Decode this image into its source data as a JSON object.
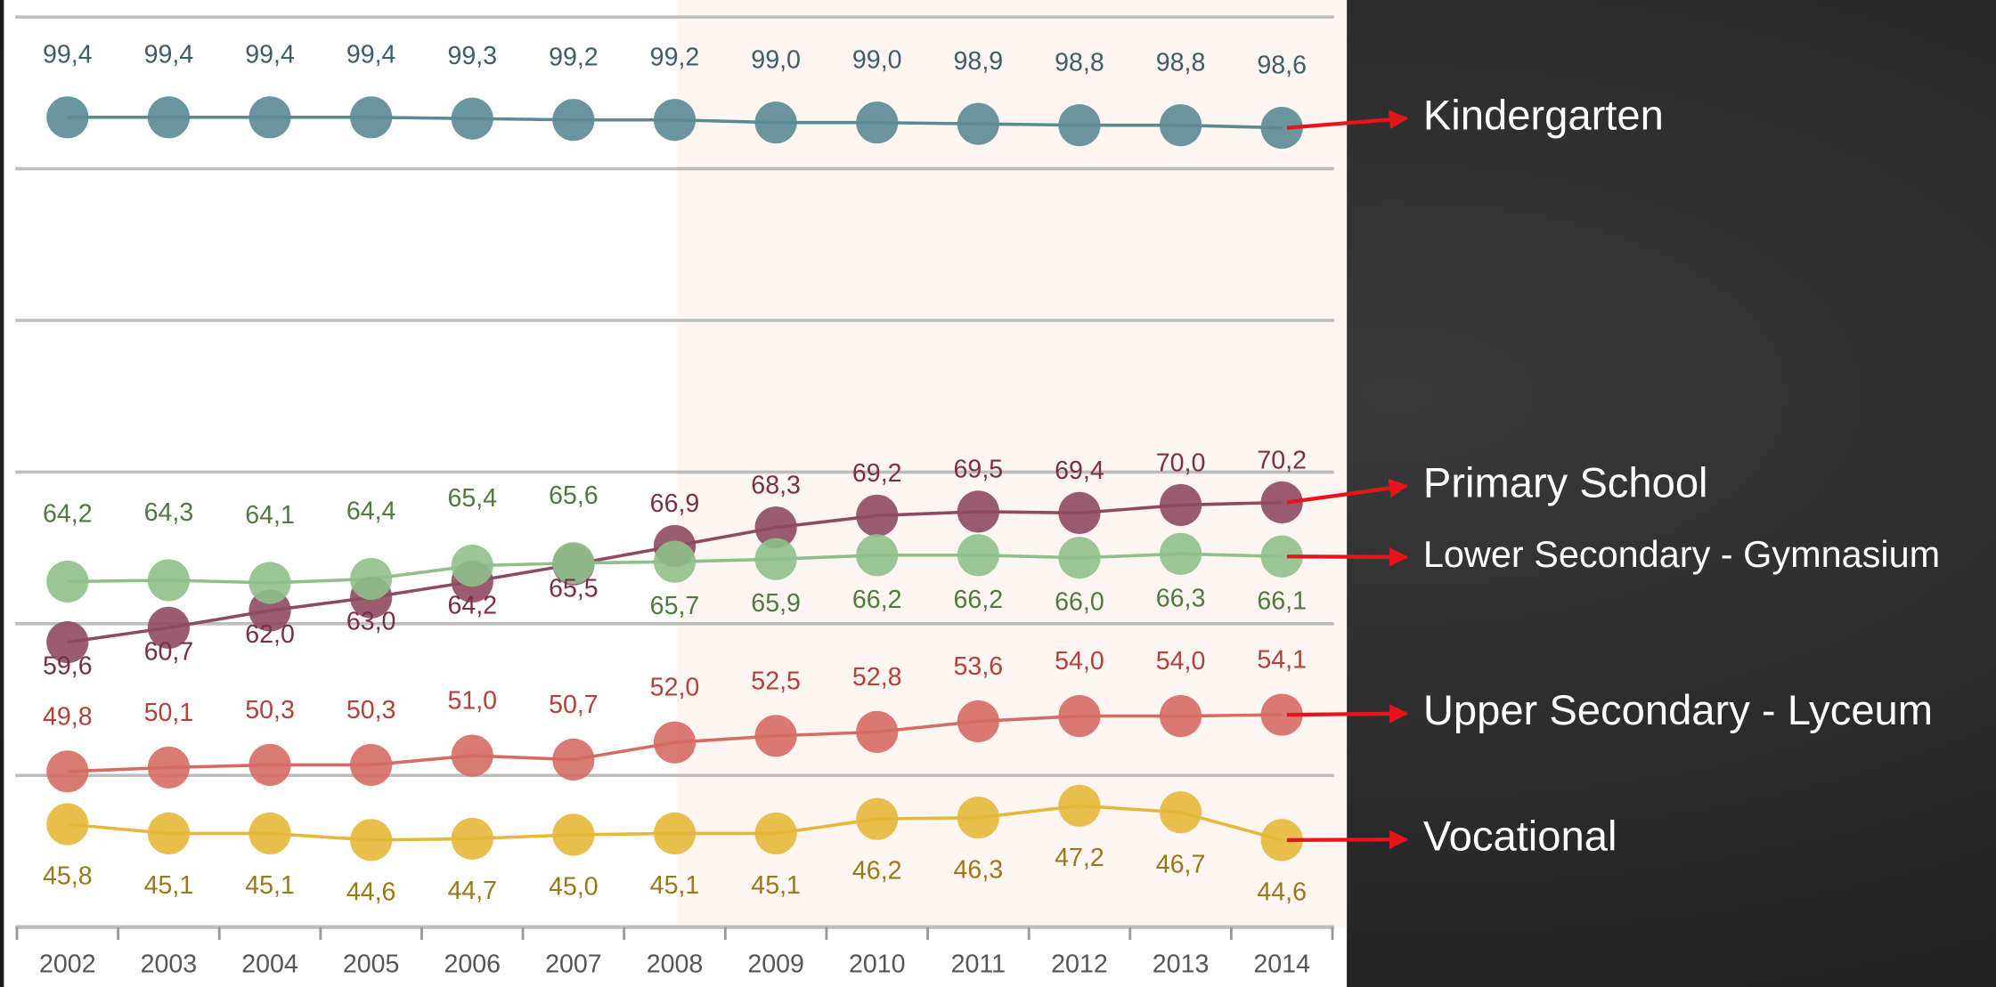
{
  "chart_data": {
    "type": "line",
    "categories": [
      "2002",
      "2003",
      "2004",
      "2005",
      "2006",
      "2007",
      "2008",
      "2009",
      "2010",
      "2011",
      "2012",
      "2013",
      "2014"
    ],
    "ylim": [
      38,
      107
    ],
    "yticks": [
      38,
      49.5,
      61,
      72.5,
      84,
      95.5,
      107
    ],
    "grid": true,
    "series": [
      {
        "name": "Kindergarten",
        "color": "#5b8a94",
        "values": [
          99.4,
          99.4,
          99.4,
          99.4,
          99.3,
          99.2,
          99.2,
          99.0,
          99.0,
          98.9,
          98.8,
          98.8,
          98.6
        ],
        "value_labels": [
          "99,4",
          "99,4",
          "99,4",
          "99,4",
          "99,3",
          "99,2",
          "99,2",
          "99,0",
          "99,0",
          "98,9",
          "98,8",
          "98,8",
          "98,6"
        ]
      },
      {
        "name": "Primary School",
        "color": "#8e4a61",
        "values": [
          59.6,
          60.7,
          62.0,
          63.0,
          64.2,
          65.5,
          66.9,
          68.3,
          69.2,
          69.5,
          69.4,
          70.0,
          70.2
        ],
        "value_labels": [
          "59,6",
          "60,7",
          "62,0",
          "63,0",
          "64,2",
          "65,5",
          "66,9",
          "68,3",
          "69,2",
          "69,5",
          "69,4",
          "70,0",
          "70,2"
        ]
      },
      {
        "name": "Lower Secondary - Gymnasium",
        "color": "#8fc08a",
        "values": [
          64.2,
          64.3,
          64.1,
          64.4,
          65.4,
          65.6,
          65.7,
          65.9,
          66.2,
          66.2,
          66.0,
          66.3,
          66.1
        ],
        "value_labels": [
          "64,2",
          "64,3",
          "64,1",
          "64,4",
          "65,4",
          "65,6",
          "65,7",
          "65,9",
          "66,2",
          "66,2",
          "66,0",
          "66,3",
          "66,1"
        ]
      },
      {
        "name": "Upper Secondary - Lyceum",
        "color": "#d56c64",
        "values": [
          49.8,
          50.1,
          50.3,
          50.3,
          51.0,
          50.7,
          52.0,
          52.5,
          52.8,
          53.6,
          54.0,
          54.0,
          54.1
        ],
        "value_labels": [
          "49,8",
          "50,1",
          "50,3",
          "50,3",
          "51,0",
          "50,7",
          "52,0",
          "52,5",
          "52,8",
          "53,6",
          "54,0",
          "54,0",
          "54,1"
        ]
      },
      {
        "name": "Vocational",
        "color": "#e6b83a",
        "values": [
          45.8,
          45.1,
          45.1,
          44.6,
          44.7,
          45.0,
          45.1,
          45.1,
          46.2,
          46.3,
          47.2,
          46.7,
          44.6
        ],
        "value_labels": [
          "45,8",
          "45,1",
          "45,1",
          "44,6",
          "44,7",
          "45,0",
          "45,1",
          "45,1",
          "46,2",
          "46,3",
          "47,2",
          "46,7",
          "44,6"
        ]
      }
    ]
  }
}
